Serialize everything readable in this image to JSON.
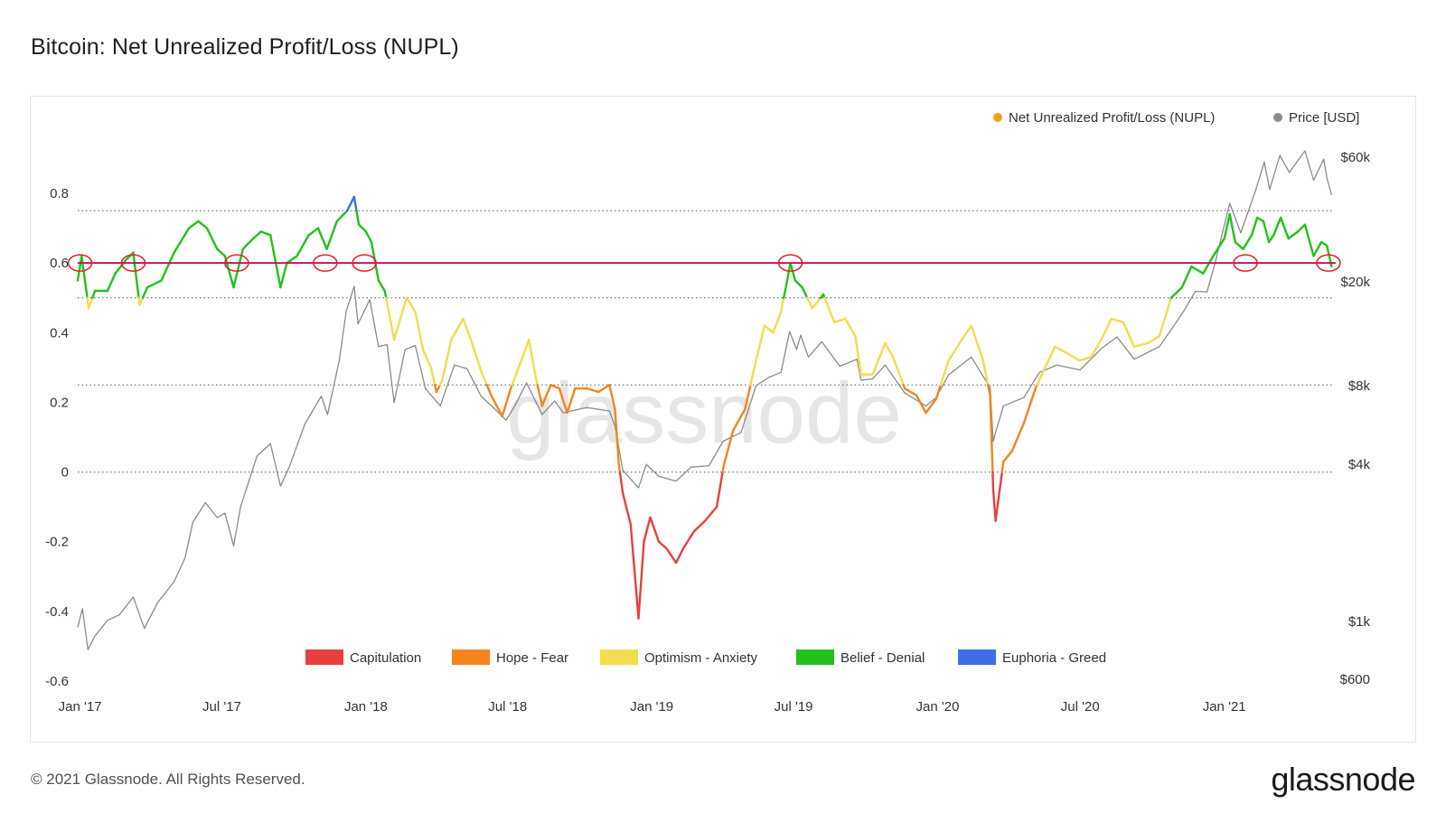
{
  "title": "Bitcoin: Net Unrealized Profit/Loss (NUPL)",
  "footer": {
    "copyright": "© 2021 Glassnode. All Rights Reserved.",
    "brand": "glassnode"
  },
  "watermark": "glassnode",
  "colors": {
    "capitulation": "#e8403f",
    "hope_fear": "#f5841f",
    "optimism_anxiety": "#f2dd4e",
    "belief_denial": "#22c21a",
    "euphoria_greed": "#3f6ee8",
    "price": "#8a8a8a",
    "nupl_legend": "#f5a11f",
    "threshold_line": "#c2185b",
    "annotation": "#e5202a"
  },
  "chart_data": {
    "type": "line",
    "series_legend": [
      {
        "name": "Net Unrealized Profit/Loss (NUPL)"
      },
      {
        "name": "Price [USD]"
      }
    ],
    "zone_legend": [
      {
        "name": "Capitulation",
        "color_key": "capitulation"
      },
      {
        "name": "Hope - Fear",
        "color_key": "hope_fear"
      },
      {
        "name": "Optimism - Anxiety",
        "color_key": "optimism_anxiety"
      },
      {
        "name": "Belief - Denial",
        "color_key": "belief_denial"
      },
      {
        "name": "Euphoria - Greed",
        "color_key": "euphoria_greed"
      }
    ],
    "x_ticks": [
      "Jan '17",
      "Jul '17",
      "Jan '18",
      "Jul '18",
      "Jan '19",
      "Jul '19",
      "Jan '20",
      "Jul '20",
      "Jan '21"
    ],
    "x_tick_dates": [
      "2017-01-01",
      "2017-07-01",
      "2018-01-01",
      "2018-07-01",
      "2019-01-01",
      "2019-07-01",
      "2020-01-01",
      "2020-07-01",
      "2021-01-01"
    ],
    "x_range": [
      "2016-12-29",
      "2021-05-21"
    ],
    "y_left": {
      "ticks": [
        "0.8",
        "0.6",
        "0.4",
        "0.2",
        "0",
        "-0.2",
        "-0.4",
        "-0.6"
      ],
      "values": [
        0.8,
        0.6,
        0.4,
        0.2,
        0,
        -0.2,
        -0.4,
        -0.6
      ],
      "range": [
        -0.6,
        0.8
      ]
    },
    "y_right": {
      "scale": "log",
      "ticks": [
        "$60k",
        "$20k",
        "$8k",
        "$4k",
        "$1k",
        "$600"
      ],
      "values": [
        60000,
        20000,
        8000,
        4000,
        1000,
        600
      ]
    },
    "threshold": 0.6,
    "zone_bounds": [
      0,
      0.25,
      0.5,
      0.75
    ],
    "grid": "dotted horizontal at 0, 0.25, 0.5, 0.75",
    "legend_position": "top-right (series), bottom (zones)",
    "nupl": [
      [
        "2016-12-29",
        0.55
      ],
      [
        "2017-01-03",
        0.62
      ],
      [
        "2017-01-12",
        0.47
      ],
      [
        "2017-01-20",
        0.52
      ],
      [
        "2017-02-05",
        0.52
      ],
      [
        "2017-02-15",
        0.57
      ],
      [
        "2017-03-01",
        0.61
      ],
      [
        "2017-03-10",
        0.63
      ],
      [
        "2017-03-18",
        0.48
      ],
      [
        "2017-03-28",
        0.53
      ],
      [
        "2017-04-15",
        0.55
      ],
      [
        "2017-05-01",
        0.63
      ],
      [
        "2017-05-20",
        0.7
      ],
      [
        "2017-06-01",
        0.72
      ],
      [
        "2017-06-12",
        0.7
      ],
      [
        "2017-06-25",
        0.64
      ],
      [
        "2017-07-05",
        0.62
      ],
      [
        "2017-07-16",
        0.53
      ],
      [
        "2017-07-28",
        0.64
      ],
      [
        "2017-08-10",
        0.67
      ],
      [
        "2017-08-20",
        0.69
      ],
      [
        "2017-09-01",
        0.68
      ],
      [
        "2017-09-14",
        0.53
      ],
      [
        "2017-09-22",
        0.6
      ],
      [
        "2017-10-05",
        0.62
      ],
      [
        "2017-10-20",
        0.68
      ],
      [
        "2017-11-01",
        0.7
      ],
      [
        "2017-11-12",
        0.64
      ],
      [
        "2017-11-25",
        0.72
      ],
      [
        "2017-12-08",
        0.75
      ],
      [
        "2017-12-17",
        0.79
      ],
      [
        "2017-12-23",
        0.71
      ],
      [
        "2018-01-01",
        0.69
      ],
      [
        "2018-01-08",
        0.66
      ],
      [
        "2018-01-17",
        0.55
      ],
      [
        "2018-01-25",
        0.52
      ],
      [
        "2018-02-06",
        0.38
      ],
      [
        "2018-02-14",
        0.44
      ],
      [
        "2018-02-22",
        0.5
      ],
      [
        "2018-03-05",
        0.46
      ],
      [
        "2018-03-15",
        0.35
      ],
      [
        "2018-03-25",
        0.3
      ],
      [
        "2018-04-01",
        0.23
      ],
      [
        "2018-04-08",
        0.26
      ],
      [
        "2018-04-20",
        0.38
      ],
      [
        "2018-05-05",
        0.44
      ],
      [
        "2018-05-15",
        0.38
      ],
      [
        "2018-05-28",
        0.29
      ],
      [
        "2018-06-10",
        0.22
      ],
      [
        "2018-06-24",
        0.16
      ],
      [
        "2018-07-05",
        0.24
      ],
      [
        "2018-07-20",
        0.33
      ],
      [
        "2018-07-28",
        0.38
      ],
      [
        "2018-08-06",
        0.27
      ],
      [
        "2018-08-14",
        0.19
      ],
      [
        "2018-08-25",
        0.25
      ],
      [
        "2018-09-05",
        0.24
      ],
      [
        "2018-09-15",
        0.17
      ],
      [
        "2018-09-25",
        0.24
      ],
      [
        "2018-10-10",
        0.24
      ],
      [
        "2018-10-25",
        0.23
      ],
      [
        "2018-11-08",
        0.25
      ],
      [
        "2018-11-15",
        0.18
      ],
      [
        "2018-11-20",
        0.02
      ],
      [
        "2018-11-25",
        -0.06
      ],
      [
        "2018-12-05",
        -0.15
      ],
      [
        "2018-12-15",
        -0.42
      ],
      [
        "2018-12-22",
        -0.2
      ],
      [
        "2018-12-30",
        -0.13
      ],
      [
        "2019-01-10",
        -0.2
      ],
      [
        "2019-01-20",
        -0.22
      ],
      [
        "2019-02-01",
        -0.26
      ],
      [
        "2019-02-10",
        -0.22
      ],
      [
        "2019-02-24",
        -0.17
      ],
      [
        "2019-03-10",
        -0.14
      ],
      [
        "2019-03-25",
        -0.1
      ],
      [
        "2019-04-03",
        0.02
      ],
      [
        "2019-04-15",
        0.12
      ],
      [
        "2019-04-30",
        0.18
      ],
      [
        "2019-05-12",
        0.3
      ],
      [
        "2019-05-25",
        0.42
      ],
      [
        "2019-06-05",
        0.4
      ],
      [
        "2019-06-15",
        0.46
      ],
      [
        "2019-06-22",
        0.54
      ],
      [
        "2019-06-27",
        0.6
      ],
      [
        "2019-07-03",
        0.55
      ],
      [
        "2019-07-12",
        0.53
      ],
      [
        "2019-07-25",
        0.47
      ],
      [
        "2019-08-08",
        0.51
      ],
      [
        "2019-08-22",
        0.43
      ],
      [
        "2019-09-05",
        0.44
      ],
      [
        "2019-09-18",
        0.39
      ],
      [
        "2019-09-25",
        0.28
      ],
      [
        "2019-10-10",
        0.28
      ],
      [
        "2019-10-26",
        0.37
      ],
      [
        "2019-11-05",
        0.33
      ],
      [
        "2019-11-20",
        0.24
      ],
      [
        "2019-12-05",
        0.22
      ],
      [
        "2019-12-17",
        0.17
      ],
      [
        "2019-12-30",
        0.21
      ],
      [
        "2020-01-15",
        0.32
      ],
      [
        "2020-02-01",
        0.38
      ],
      [
        "2020-02-13",
        0.42
      ],
      [
        "2020-02-28",
        0.32
      ],
      [
        "2020-03-08",
        0.22
      ],
      [
        "2020-03-12",
        -0.05
      ],
      [
        "2020-03-15",
        -0.14
      ],
      [
        "2020-03-25",
        0.03
      ],
      [
        "2020-04-05",
        0.06
      ],
      [
        "2020-04-20",
        0.14
      ],
      [
        "2020-05-05",
        0.24
      ],
      [
        "2020-05-15",
        0.29
      ],
      [
        "2020-05-30",
        0.36
      ],
      [
        "2020-06-15",
        0.34
      ],
      [
        "2020-06-30",
        0.32
      ],
      [
        "2020-07-15",
        0.33
      ],
      [
        "2020-07-28",
        0.38
      ],
      [
        "2020-08-10",
        0.44
      ],
      [
        "2020-08-25",
        0.43
      ],
      [
        "2020-09-08",
        0.36
      ],
      [
        "2020-09-25",
        0.37
      ],
      [
        "2020-10-10",
        0.39
      ],
      [
        "2020-10-25",
        0.5
      ],
      [
        "2020-11-08",
        0.53
      ],
      [
        "2020-11-20",
        0.59
      ],
      [
        "2020-12-05",
        0.57
      ],
      [
        "2020-12-18",
        0.62
      ],
      [
        "2021-01-01",
        0.67
      ],
      [
        "2021-01-08",
        0.74
      ],
      [
        "2021-01-15",
        0.66
      ],
      [
        "2021-01-25",
        0.64
      ],
      [
        "2021-02-05",
        0.68
      ],
      [
        "2021-02-12",
        0.73
      ],
      [
        "2021-02-20",
        0.72
      ],
      [
        "2021-02-27",
        0.66
      ],
      [
        "2021-03-05",
        0.68
      ],
      [
        "2021-03-14",
        0.73
      ],
      [
        "2021-03-24",
        0.67
      ],
      [
        "2021-04-05",
        0.69
      ],
      [
        "2021-04-14",
        0.71
      ],
      [
        "2021-04-25",
        0.62
      ],
      [
        "2021-05-05",
        0.66
      ],
      [
        "2021-05-12",
        0.65
      ],
      [
        "2021-05-18",
        0.59
      ]
    ],
    "price": [
      [
        "2016-12-29",
        950
      ],
      [
        "2017-01-04",
        1120
      ],
      [
        "2017-01-11",
        780
      ],
      [
        "2017-01-20",
        880
      ],
      [
        "2017-02-05",
        1010
      ],
      [
        "2017-02-20",
        1060
      ],
      [
        "2017-03-10",
        1240
      ],
      [
        "2017-03-24",
        940
      ],
      [
        "2017-04-10",
        1180
      ],
      [
        "2017-05-01",
        1420
      ],
      [
        "2017-05-15",
        1750
      ],
      [
        "2017-05-25",
        2400
      ],
      [
        "2017-06-10",
        2850
      ],
      [
        "2017-06-25",
        2500
      ],
      [
        "2017-07-05",
        2600
      ],
      [
        "2017-07-16",
        1950
      ],
      [
        "2017-07-25",
        2750
      ],
      [
        "2017-08-15",
        4300
      ],
      [
        "2017-09-01",
        4800
      ],
      [
        "2017-09-14",
        3300
      ],
      [
        "2017-09-25",
        3900
      ],
      [
        "2017-10-15",
        5700
      ],
      [
        "2017-11-05",
        7300
      ],
      [
        "2017-11-13",
        6200
      ],
      [
        "2017-11-28",
        10000
      ],
      [
        "2017-12-07",
        15500
      ],
      [
        "2017-12-17",
        19200
      ],
      [
        "2017-12-22",
        13800
      ],
      [
        "2018-01-06",
        17100
      ],
      [
        "2018-01-17",
        11300
      ],
      [
        "2018-01-28",
        11500
      ],
      [
        "2018-02-06",
        6900
      ],
      [
        "2018-02-20",
        11000
      ],
      [
        "2018-03-05",
        11400
      ],
      [
        "2018-03-18",
        7800
      ],
      [
        "2018-04-06",
        6700
      ],
      [
        "2018-04-24",
        9600
      ],
      [
        "2018-05-10",
        9300
      ],
      [
        "2018-05-28",
        7300
      ],
      [
        "2018-06-15",
        6500
      ],
      [
        "2018-06-29",
        5900
      ],
      [
        "2018-07-10",
        6700
      ],
      [
        "2018-07-25",
        8200
      ],
      [
        "2018-08-14",
        6200
      ],
      [
        "2018-08-30",
        7000
      ],
      [
        "2018-09-10",
        6300
      ],
      [
        "2018-10-10",
        6600
      ],
      [
        "2018-11-08",
        6400
      ],
      [
        "2018-11-15",
        5600
      ],
      [
        "2018-11-25",
        3800
      ],
      [
        "2018-12-15",
        3250
      ],
      [
        "2018-12-25",
        4000
      ],
      [
        "2019-01-10",
        3600
      ],
      [
        "2019-02-01",
        3450
      ],
      [
        "2019-02-20",
        3900
      ],
      [
        "2019-03-15",
        3950
      ],
      [
        "2019-04-02",
        4900
      ],
      [
        "2019-04-25",
        5300
      ],
      [
        "2019-05-14",
        8000
      ],
      [
        "2019-05-30",
        8600
      ],
      [
        "2019-06-15",
        9000
      ],
      [
        "2019-06-26",
        12900
      ],
      [
        "2019-07-05",
        11000
      ],
      [
        "2019-07-10",
        12500
      ],
      [
        "2019-07-20",
        10300
      ],
      [
        "2019-08-06",
        11800
      ],
      [
        "2019-08-29",
        9500
      ],
      [
        "2019-09-20",
        10100
      ],
      [
        "2019-09-25",
        8400
      ],
      [
        "2019-10-10",
        8500
      ],
      [
        "2019-10-26",
        9600
      ],
      [
        "2019-11-20",
        7500
      ],
      [
        "2019-12-17",
        6700
      ],
      [
        "2019-12-30",
        7200
      ],
      [
        "2020-01-15",
        8800
      ],
      [
        "2020-02-13",
        10300
      ],
      [
        "2020-02-28",
        8700
      ],
      [
        "2020-03-08",
        7900
      ],
      [
        "2020-03-12",
        4900
      ],
      [
        "2020-03-15",
        5300
      ],
      [
        "2020-03-25",
        6700
      ],
      [
        "2020-04-20",
        7200
      ],
      [
        "2020-05-10",
        9000
      ],
      [
        "2020-06-01",
        9600
      ],
      [
        "2020-07-01",
        9200
      ],
      [
        "2020-07-28",
        11100
      ],
      [
        "2020-08-17",
        12300
      ],
      [
        "2020-09-08",
        10100
      ],
      [
        "2020-10-10",
        11300
      ],
      [
        "2020-10-25",
        13100
      ],
      [
        "2020-11-10",
        15400
      ],
      [
        "2020-11-25",
        18400
      ],
      [
        "2020-12-10",
        18300
      ],
      [
        "2020-12-20",
        23500
      ],
      [
        "2021-01-08",
        40000
      ],
      [
        "2021-01-22",
        30800
      ],
      [
        "2021-02-10",
        44800
      ],
      [
        "2021-02-21",
        57500
      ],
      [
        "2021-02-28",
        45200
      ],
      [
        "2021-03-13",
        61000
      ],
      [
        "2021-03-25",
        52500
      ],
      [
        "2021-04-14",
        63500
      ],
      [
        "2021-04-25",
        49000
      ],
      [
        "2021-05-08",
        59000
      ],
      [
        "2021-05-12",
        50000
      ],
      [
        "2021-05-18",
        43000
      ]
    ]
  }
}
